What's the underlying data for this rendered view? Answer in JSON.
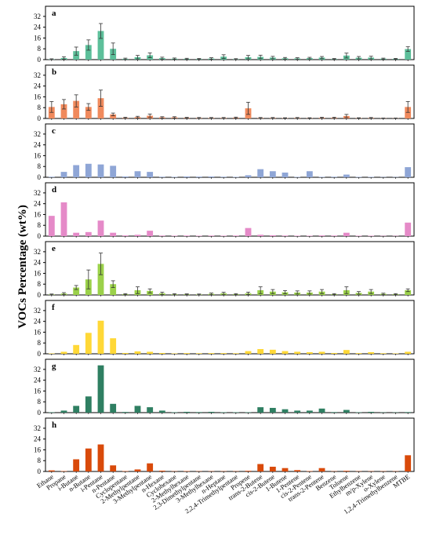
{
  "figure": {
    "ylabel": "VOCs Percentage (wt%)",
    "bar_colors": {
      "a": "#5dbf9a",
      "b": "#f08a5d",
      "c": "#8fa6d6",
      "d": "#e58ac8",
      "e": "#9bd14a",
      "f": "#ffd837",
      "g": "#2f7f62",
      "h": "#d94a0a"
    }
  },
  "chart_data": [
    {
      "type": "bar",
      "panel_label": "a",
      "categories": [
        "Ethane",
        "Propane",
        "i-Butane",
        "n-Butane",
        "i-Pentane",
        "n-Pentane",
        "Cyclopentane",
        "2-Methylpentane",
        "3-Methylpentane",
        "n-Hexane",
        "Cyclohexane",
        "2-Methylhexane",
        "2,3-Dimethylpentane",
        "3-Methylhexane",
        "n-Heptane",
        "2,2,4-Trimethylpentane",
        "Propene",
        "trans-2-Butene",
        "cis-2-Butene",
        "1-Butene",
        "1-Pentene",
        "cis-2-Pentene",
        "trans-2-Pentene",
        "Benzene",
        "Toluene",
        "Ethylbenzene",
        "m/p-Xylene",
        "o-Xylene",
        "1,2,4-Trimethylbenzene",
        "MTBE"
      ],
      "values": [
        0.3,
        1.2,
        6.3,
        10.8,
        21.2,
        8.0,
        0.6,
        1.8,
        3.2,
        1.1,
        0.7,
        0.6,
        0.5,
        0.8,
        2.2,
        0.4,
        1.8,
        2.0,
        1.5,
        1.0,
        0.9,
        1.1,
        1.5,
        0.5,
        3.0,
        1.4,
        1.5,
        0.7,
        0.6,
        7.8
      ],
      "errors": [
        0.3,
        0.9,
        3.0,
        3.8,
        5.5,
        4.3,
        0.5,
        1.3,
        1.8,
        0.7,
        0.5,
        0.4,
        0.3,
        0.6,
        1.4,
        0.3,
        1.3,
        1.3,
        0.9,
        0.6,
        0.5,
        0.6,
        0.8,
        0.3,
        1.8,
        0.9,
        1.0,
        0.4,
        0.3,
        1.7
      ],
      "yticks": [
        0,
        8,
        16,
        24,
        32
      ],
      "ylim": [
        0,
        36
      ]
    },
    {
      "type": "bar",
      "panel_label": "b",
      "categories": [
        "Ethane",
        "Propane",
        "i-Butane",
        "n-Butane",
        "i-Pentane",
        "n-Pentane",
        "Cyclopentane",
        "2-Methylpentane",
        "3-Methylpentane",
        "n-Hexane",
        "Cyclohexane",
        "2-Methylhexane",
        "2,3-Dimethylpentane",
        "3-Methylhexane",
        "n-Heptane",
        "2,2,4-Trimethylpentane",
        "Propene",
        "trans-2-Butene",
        "cis-2-Butene",
        "1-Butene",
        "1-Pentene",
        "cis-2-Pentene",
        "trans-2-Pentene",
        "Benzene",
        "Toluene",
        "Ethylbenzene",
        "m/p-Xylene",
        "o-Xylene",
        "1,2,4-Trimethylbenzene",
        "MTBE"
      ],
      "values": [
        8.5,
        10.5,
        13.0,
        8.5,
        15.0,
        3.0,
        0.5,
        1.0,
        2.0,
        0.8,
        0.8,
        0.5,
        0.4,
        0.4,
        0.4,
        0.6,
        7.5,
        0.4,
        0.4,
        0.3,
        0.4,
        0.3,
        0.5,
        0.5,
        1.8,
        0.3,
        0.4,
        0.2,
        0.2,
        8.5
      ],
      "errors": [
        4.0,
        3.5,
        4.5,
        2.5,
        6.0,
        1.0,
        0.4,
        0.6,
        1.3,
        0.5,
        0.5,
        0.3,
        0.3,
        0.3,
        0.3,
        0.4,
        4.5,
        0.3,
        0.3,
        0.2,
        0.3,
        0.2,
        0.4,
        0.4,
        1.2,
        0.2,
        0.3,
        0.1,
        0.1,
        4.0
      ],
      "yticks": [
        0,
        8,
        16,
        24,
        32
      ],
      "ylim": [
        0,
        36
      ]
    },
    {
      "type": "bar",
      "panel_label": "c",
      "categories": [
        "Ethane",
        "Propane",
        "i-Butane",
        "n-Butane",
        "i-Pentane",
        "n-Pentane",
        "Cyclopentane",
        "2-Methylpentane",
        "3-Methylpentane",
        "n-Hexane",
        "Cyclohexane",
        "2-Methylhexane",
        "2,3-Dimethylpentane",
        "3-Methylhexane",
        "n-Heptane",
        "2,2,4-Trimethylpentane",
        "Propene",
        "trans-2-Butene",
        "cis-2-Butene",
        "1-Butene",
        "1-Pentene",
        "cis-2-Pentene",
        "trans-2-Pentene",
        "Benzene",
        "Toluene",
        "Ethylbenzene",
        "m/p-Xylene",
        "o-Xylene",
        "1,2,4-Trimethylbenzene",
        "MTBE"
      ],
      "values": [
        0.4,
        4.0,
        9.0,
        10.0,
        9.5,
        8.5,
        0.6,
        4.5,
        4.0,
        0.4,
        0.3,
        0.6,
        0.5,
        0.6,
        0.4,
        0.3,
        1.5,
        6.0,
        4.5,
        3.5,
        0.3,
        4.5,
        0.3,
        0.4,
        2.0,
        0.3,
        0.3,
        0.2,
        0.2,
        7.5
      ],
      "yticks": [
        0,
        8,
        16,
        24,
        32
      ],
      "ylim": [
        0,
        36
      ]
    },
    {
      "type": "bar",
      "panel_label": "d",
      "categories": [
        "Ethane",
        "Propane",
        "i-Butane",
        "n-Butane",
        "i-Pentane",
        "n-Pentane",
        "Cyclopentane",
        "2-Methylpentane",
        "3-Methylpentane",
        "n-Hexane",
        "Cyclohexane",
        "2-Methylhexane",
        "2,3-Dimethylpentane",
        "3-Methylhexane",
        "n-Heptane",
        "2,2,4-Trimethylpentane",
        "Propene",
        "trans-2-Butene",
        "cis-2-Butene",
        "1-Butene",
        "1-Pentene",
        "cis-2-Pentene",
        "trans-2-Pentene",
        "Benzene",
        "Toluene",
        "Ethylbenzene",
        "m/p-Xylene",
        "o-Xylene",
        "1,2,4-Trimethylbenzene",
        "MTBE"
      ],
      "values": [
        15.0,
        25.0,
        2.5,
        3.0,
        11.5,
        2.5,
        0.5,
        1.0,
        4.0,
        0.4,
        0.3,
        0.4,
        0.3,
        0.4,
        0.3,
        0.4,
        6.0,
        1.0,
        0.6,
        0.4,
        0.3,
        0.3,
        0.5,
        0.4,
        2.5,
        0.3,
        0.3,
        0.2,
        0.2,
        10.0
      ],
      "yticks": [
        0,
        8,
        16,
        24,
        32
      ],
      "ylim": [
        0,
        36
      ]
    },
    {
      "type": "bar",
      "panel_label": "e",
      "categories": [
        "Ethane",
        "Propane",
        "i-Butane",
        "n-Butane",
        "i-Pentane",
        "n-Pentane",
        "Cyclopentane",
        "2-Methylpentane",
        "3-Methylpentane",
        "n-Hexane",
        "Cyclohexane",
        "2-Methylhexane",
        "2,3-Dimethylpentane",
        "3-Methylhexane",
        "n-Heptane",
        "2,2,4-Trimethylpentane",
        "Propene",
        "trans-2-Butene",
        "cis-2-Butene",
        "1-Butene",
        "1-Pentene",
        "cis-2-Pentene",
        "trans-2-Pentene",
        "Benzene",
        "Toluene",
        "Ethylbenzene",
        "m/p-Xylene",
        "o-Xylene",
        "1,2,4-Trimethylbenzene",
        "MTBE"
      ],
      "values": [
        0.4,
        1.0,
        5.5,
        11.5,
        23.0,
        8.0,
        0.6,
        3.5,
        3.0,
        1.2,
        0.5,
        0.5,
        0.4,
        0.8,
        1.2,
        0.6,
        1.2,
        3.5,
        2.5,
        2.0,
        1.8,
        1.8,
        2.5,
        0.6,
        3.5,
        1.5,
        2.5,
        0.8,
        0.6,
        3.5
      ],
      "errors": [
        0.3,
        0.7,
        1.5,
        7.0,
        8.0,
        2.5,
        0.4,
        2.5,
        1.5,
        0.9,
        0.4,
        0.3,
        0.3,
        0.6,
        0.8,
        0.4,
        0.9,
        2.5,
        1.5,
        1.2,
        1.2,
        1.2,
        1.5,
        0.4,
        2.5,
        1.0,
        1.5,
        0.5,
        0.4,
        1.0
      ],
      "yticks": [
        0,
        8,
        16,
        24,
        32
      ],
      "ylim": [
        0,
        36
      ]
    },
    {
      "type": "bar",
      "panel_label": "f",
      "categories": [
        "Ethane",
        "Propane",
        "i-Butane",
        "n-Butane",
        "i-Pentane",
        "n-Pentane",
        "Cyclopentane",
        "2-Methylpentane",
        "3-Methylpentane",
        "n-Hexane",
        "Cyclohexane",
        "2-Methylhexane",
        "2,3-Dimethylpentane",
        "3-Methylhexane",
        "n-Heptane",
        "2,2,4-Trimethylpentane",
        "Propene",
        "trans-2-Butene",
        "cis-2-Butene",
        "1-Butene",
        "1-Pentene",
        "cis-2-Pentene",
        "trans-2-Pentene",
        "Benzene",
        "Toluene",
        "Ethylbenzene",
        "m/p-Xylene",
        "o-Xylene",
        "1,2,4-Trimethylbenzene",
        "MTBE"
      ],
      "values": [
        0.3,
        1.5,
        6.5,
        15.5,
        24.5,
        11.5,
        0.6,
        1.8,
        1.5,
        0.6,
        0.3,
        0.5,
        0.4,
        0.5,
        0.5,
        0.4,
        2.0,
        3.5,
        3.0,
        2.0,
        1.5,
        1.2,
        1.5,
        0.6,
        2.8,
        0.5,
        1.2,
        0.4,
        0.3,
        1.5
      ],
      "yticks": [
        0,
        8,
        16,
        24,
        32
      ],
      "ylim": [
        0,
        36
      ]
    },
    {
      "type": "bar",
      "panel_label": "g",
      "categories": [
        "Ethane",
        "Propane",
        "i-Butane",
        "n-Butane",
        "i-Pentane",
        "n-Pentane",
        "Cyclopentane",
        "2-Methylpentane",
        "3-Methylpentane",
        "n-Hexane",
        "Cyclohexane",
        "2-Methylhexane",
        "2,3-Dimethylpentane",
        "3-Methylhexane",
        "n-Heptane",
        "2,2,4-Trimethylpentane",
        "Propene",
        "trans-2-Butene",
        "cis-2-Butene",
        "1-Butene",
        "1-Pentene",
        "cis-2-Pentene",
        "trans-2-Pentene",
        "Benzene",
        "Toluene",
        "Ethylbenzene",
        "m/p-Xylene",
        "o-Xylene",
        "1,2,4-Trimethylbenzene",
        "MTBE"
      ],
      "values": [
        0.3,
        1.5,
        5.0,
        12.0,
        35.0,
        6.5,
        0.5,
        5.0,
        4.0,
        1.5,
        0.3,
        0.6,
        0.4,
        0.6,
        0.3,
        0.3,
        0.3,
        4.0,
        3.5,
        2.5,
        1.5,
        1.5,
        3.0,
        0.4,
        2.0,
        0.3,
        0.6,
        0.2,
        0.2,
        0.4
      ],
      "yticks": [
        0,
        8,
        16,
        24,
        32
      ],
      "ylim": [
        0,
        36
      ]
    },
    {
      "type": "bar",
      "panel_label": "h",
      "categories": [
        "Ethane",
        "Propane",
        "i-Butane",
        "n-Butane",
        "i-Pentane",
        "n-Pentane",
        "Cyclopentane",
        "2-Methylpentane",
        "3-Methylpentane",
        "n-Hexane",
        "Cyclohexane",
        "2-Methylhexane",
        "2,3-Dimethylpentane",
        "3-Methylhexane",
        "n-Heptane",
        "2,2,4-Trimethylpentane",
        "Propene",
        "trans-2-Butene",
        "cis-2-Butene",
        "1-Butene",
        "1-Pentene",
        "cis-2-Pentene",
        "trans-2-Pentene",
        "Benzene",
        "Toluene",
        "Ethylbenzene",
        "m/p-Xylene",
        "o-Xylene",
        "1,2,4-Trimethylbenzene",
        "MTBE"
      ],
      "values": [
        0.8,
        0.3,
        9.0,
        17.0,
        20.0,
        4.5,
        0.3,
        1.5,
        6.0,
        0.6,
        0.2,
        0.3,
        0.2,
        0.2,
        0.2,
        0.2,
        0.5,
        5.5,
        3.5,
        2.5,
        1.0,
        0.3,
        2.5,
        0.2,
        0.5,
        0.2,
        0.2,
        0.2,
        0.2,
        12.0
      ],
      "yticks": [
        0,
        8,
        16,
        24,
        32
      ],
      "ylim": [
        0,
        36
      ]
    }
  ]
}
